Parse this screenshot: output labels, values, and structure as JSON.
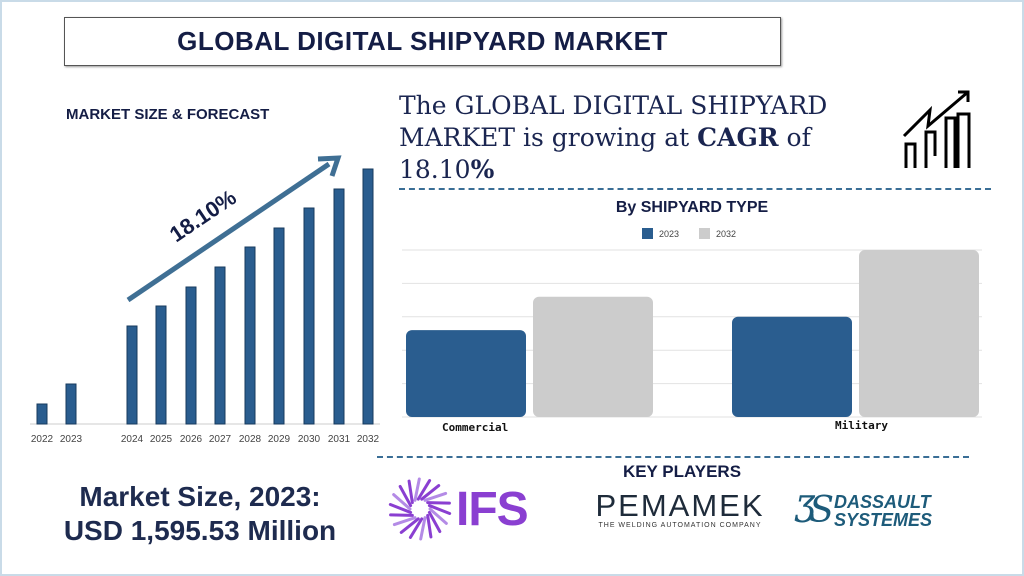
{
  "title": "GLOBAL DIGITAL SHIPYARD MARKET",
  "forecast_heading": "MARKET SIZE & FORECAST",
  "headline": {
    "part1": "The GLOBAL  DIGITAL SHIPYARD MARKET is growing at ",
    "cagr_word": "CAGR",
    "part2": " of ",
    "cagr_value": "18.10",
    "percent": "%"
  },
  "growth_arrow_label": "18.10%",
  "market_size": {
    "line1": "Market Size, 2023:",
    "line2": "USD 1,595.53 Million"
  },
  "key_players": {
    "heading": "KEY PLAYERS",
    "logos": [
      "IFS",
      "PEMAMEK",
      "THE WELDING AUTOMATION COMPANY",
      "DASSAULT",
      "SYSTEMES"
    ]
  },
  "colors": {
    "navy": "#141d45",
    "bar_blue": "#2a5d8f",
    "grey": "#cccccc",
    "ifs_purple": "#8a3fd1",
    "dassault_teal": "#1d5b7a"
  },
  "chart_data": [
    {
      "type": "bar",
      "title": "MARKET SIZE & FORECAST",
      "categories": [
        "2022",
        "2023",
        "2024",
        "2025",
        "2026",
        "2027",
        "2028",
        "2029",
        "2030",
        "2031",
        "2032"
      ],
      "values": [
        20,
        40,
        98,
        118,
        137,
        157,
        177,
        196,
        216,
        235,
        255
      ],
      "annotation": "18.10%",
      "ylim": [
        0,
        260
      ],
      "grid": false
    },
    {
      "type": "bar",
      "title": "By SHIPYARD TYPE",
      "categories": [
        "Commercial",
        "Military"
      ],
      "series": [
        {
          "name": "2023",
          "values": [
            2.6,
            3.0
          ],
          "color": "#2a5d8f"
        },
        {
          "name": "2032",
          "values": [
            3.6,
            5.0
          ],
          "color": "#cccccc"
        }
      ],
      "ylim": [
        0,
        5
      ],
      "grid": true,
      "legend": "top"
    }
  ]
}
